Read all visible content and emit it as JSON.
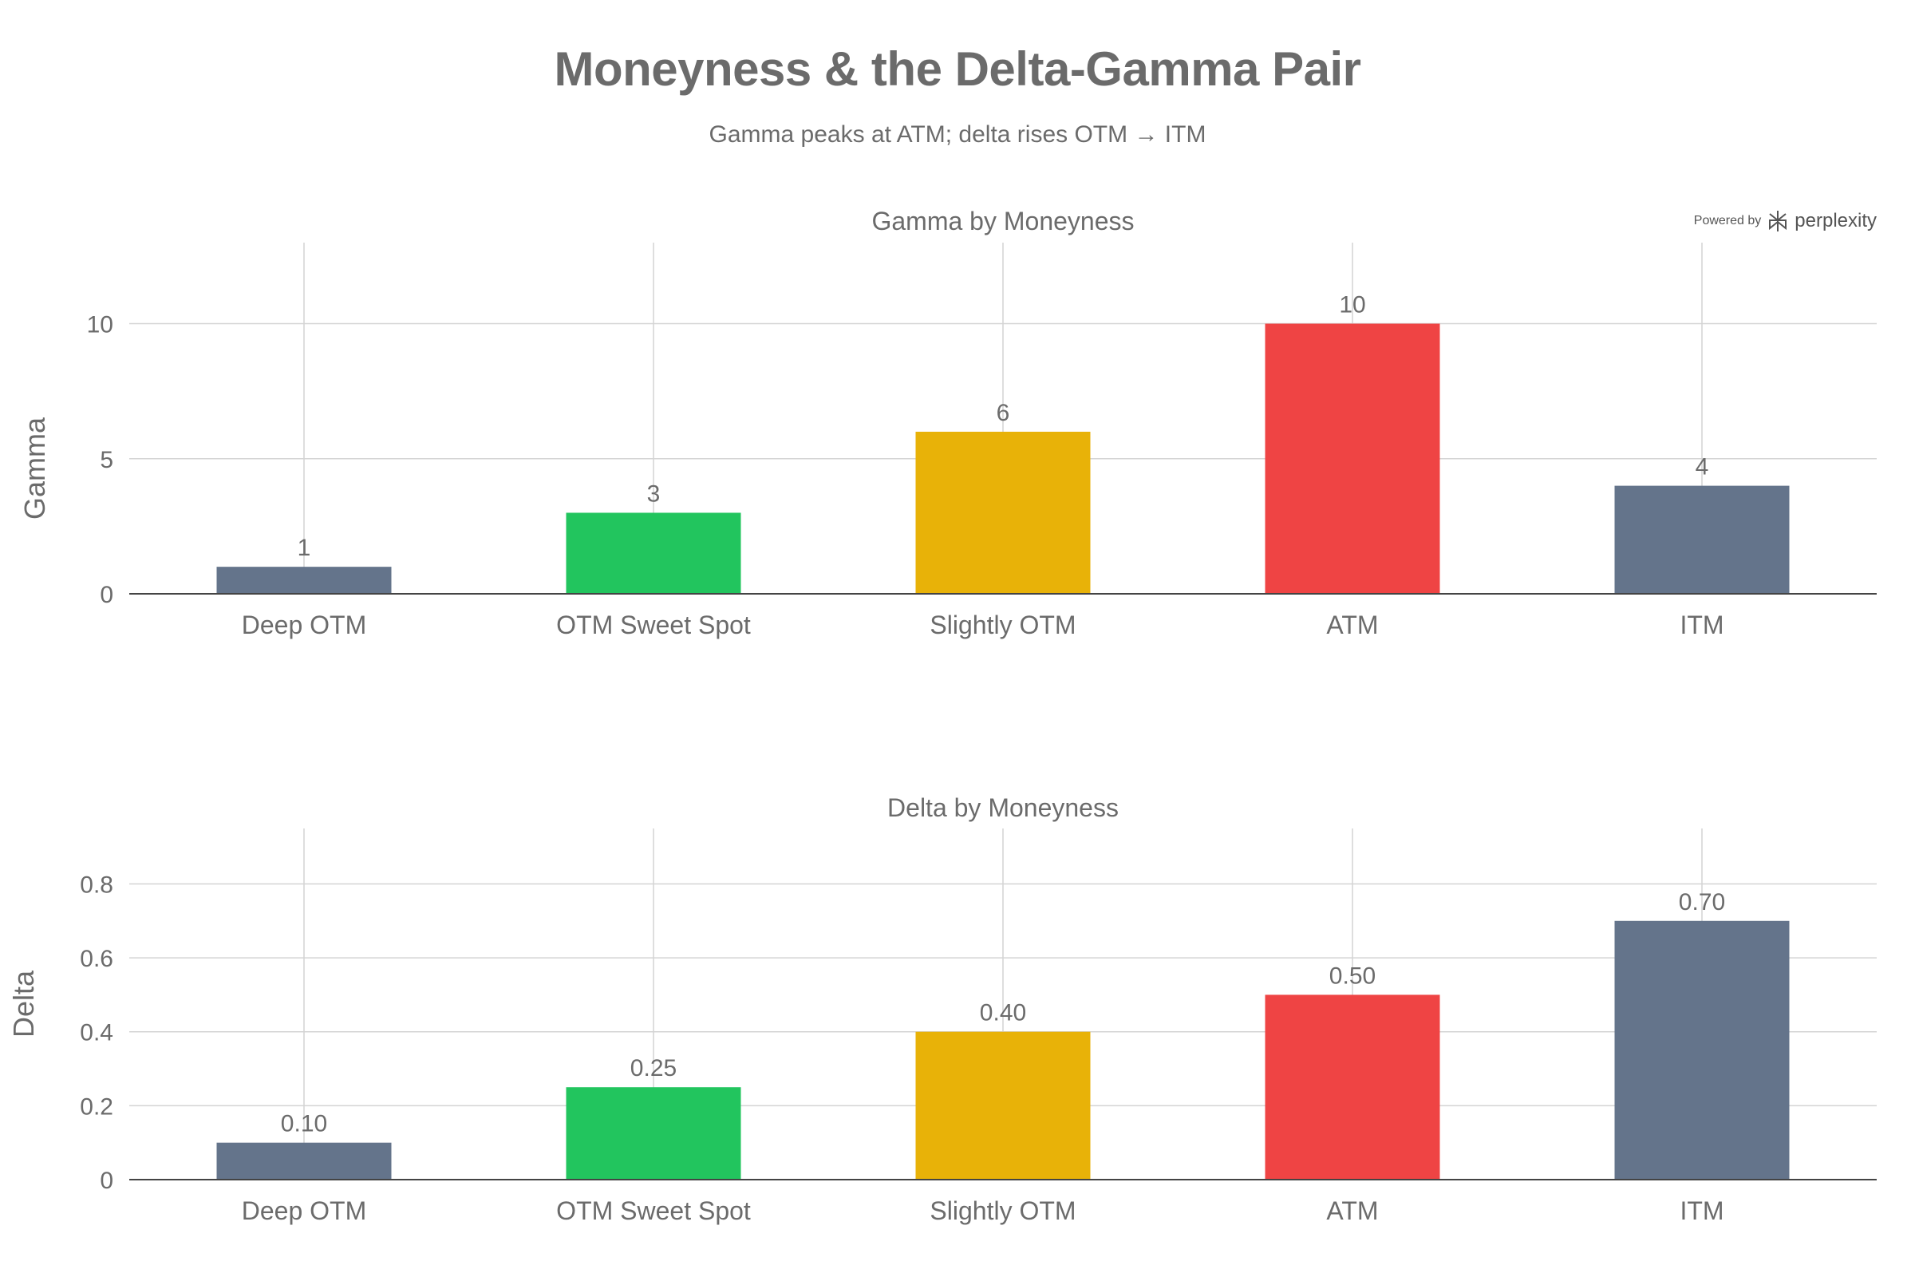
{
  "title": "Moneyness & the Delta-Gamma Pair",
  "subtitle": "Gamma peaks at ATM; delta rises OTM → ITM",
  "branding": {
    "powered_by": "Powered by",
    "name": "perplexity",
    "icon": "perplexity-logo-icon"
  },
  "colors": {
    "slate": "#64748b",
    "green": "#22c55e",
    "amber": "#e8b208",
    "red": "#ef4444"
  },
  "chart_data": [
    {
      "type": "bar",
      "title": "Gamma by Moneyness",
      "xlabel": "",
      "ylabel": "Gamma",
      "categories": [
        "Deep OTM",
        "OTM Sweet Spot",
        "Slightly OTM",
        "ATM",
        "ITM"
      ],
      "values": [
        1,
        3,
        6,
        10,
        4
      ],
      "value_labels": [
        "1",
        "3",
        "6",
        "10",
        "4"
      ],
      "bar_colors": [
        "#64748b",
        "#22c55e",
        "#e8b208",
        "#ef4444",
        "#64748b"
      ],
      "ylim": [
        0,
        13
      ],
      "yticks": [
        0,
        5,
        10
      ],
      "ytick_labels": [
        "0",
        "5",
        "10"
      ],
      "grid": true,
      "legend": false
    },
    {
      "type": "bar",
      "title": "Delta by Moneyness",
      "xlabel": "",
      "ylabel": "Delta",
      "categories": [
        "Deep OTM",
        "OTM Sweet Spot",
        "Slightly OTM",
        "ATM",
        "ITM"
      ],
      "values": [
        0.1,
        0.25,
        0.4,
        0.5,
        0.7
      ],
      "value_labels": [
        "0.10",
        "0.25",
        "0.40",
        "0.50",
        "0.70"
      ],
      "bar_colors": [
        "#64748b",
        "#22c55e",
        "#e8b208",
        "#ef4444",
        "#64748b"
      ],
      "ylim": [
        0,
        0.95
      ],
      "yticks": [
        0,
        0.2,
        0.4,
        0.6,
        0.8
      ],
      "ytick_labels": [
        "0",
        "0.2",
        "0.4",
        "0.6",
        "0.8"
      ],
      "grid": true,
      "legend": false
    }
  ]
}
